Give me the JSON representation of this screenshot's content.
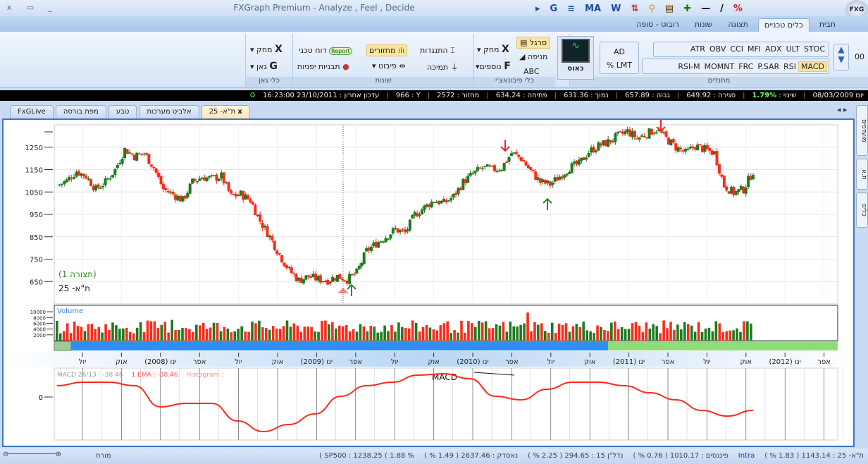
{
  "window": {
    "title": "FXGraph Premium - Analyze , Feel , Decide",
    "logo": "FXG",
    "close": "x",
    "restore": "▭",
    "minimize": "_"
  },
  "quick_access": [
    "G",
    "MA",
    "W",
    "%"
  ],
  "ribbon_tabs": [
    {
      "label": "תבית"
    },
    {
      "label": "כלים טכניים",
      "active": true
    },
    {
      "label": "תצוגה"
    },
    {
      "label": "שונות"
    },
    {
      "label": "רובוט - סופה"
    }
  ],
  "ribbon": {
    "indicators": {
      "label": "מתנדים",
      "row1": [
        "ATR",
        "OBV",
        "CCI",
        "MFI",
        "ADX",
        "ULT",
        "STOC"
      ],
      "row2": [
        "RSI-M",
        "MOMNT",
        "FRC",
        "P.SAR",
        "RSI",
        "MACD"
      ],
      "selected": "MACD",
      "ad": "AD",
      "lmt": "% LMT",
      "counter": "00"
    },
    "chaos": {
      "label": "כאוס"
    },
    "fibonacci": {
      "label": "כלי פיבונאצ'י",
      "ruler": "סרגל",
      "fan": "מניפה",
      "abc": "ABC",
      "delete": "מחק",
      "more": "נוספים"
    },
    "misc": {
      "label": "שונות",
      "resistance": "התנגדות",
      "support": "תמיכה",
      "cycles": "מחזורים",
      "pivot": "פיבוט",
      "report_badge": "Report",
      "tech_report": "דוח טכני",
      "japanese": "תבניות יפניות"
    },
    "gann": {
      "label": "כלי גאן",
      "delete": "מחק",
      "gann": "גאן"
    }
  },
  "info_bar": {
    "date": "08/03/2009 יום",
    "change_label": "שינוי :",
    "change": "1.79%",
    "close": "סגירה : 649.92",
    "high": "גבוה : 657.89",
    "low": "נמוך : 631.36",
    "open": "פתיחה : 634.24",
    "volume": "מחזור : 2572",
    "y": "966 : Y",
    "last_update": "עדכון אחרון : 23/10/2011 16:23:00"
  },
  "doc_tabs": [
    {
      "label": "ת\"א- 25",
      "active": true
    },
    {
      "label": "אלביט מערכות"
    },
    {
      "label": "טבע"
    },
    {
      "label": "מפת בורסה"
    },
    {
      "label": "FxGLive"
    }
  ],
  "side_tabs": [
    "מועדפים",
    "ת.א",
    "כלים"
  ],
  "chart_data": [
    {
      "type": "candlestick",
      "title": "ת\"א- 25",
      "subtitle": "(תצורה 1)",
      "ylim": [
        550,
        1350
      ],
      "yticks": [
        650,
        750,
        850,
        950,
        1050,
        1150,
        1250
      ],
      "closes": [
        1078,
        1100,
        1143,
        1120,
        1062,
        1094,
        1150,
        1240,
        1210,
        1224,
        1159,
        1062,
        1040,
        1013,
        1094,
        1117,
        1110,
        1120,
        1030,
        1040,
        1013,
        920,
        851,
        770,
        700,
        656,
        673,
        660,
        656,
        673,
        660,
        689,
        786,
        820,
        851,
        883,
        867,
        948,
        981,
        1013,
        1000,
        1030,
        1094,
        1130,
        1159,
        1150,
        1159,
        1224,
        1200,
        1143,
        1094,
        1084,
        1120,
        1159,
        1175,
        1230,
        1256,
        1273,
        1300,
        1321,
        1289,
        1310,
        1331,
        1289,
        1250,
        1224,
        1256,
        1240,
        1224,
        1078,
        1046,
        1062,
        1143
      ],
      "markers": [
        {
          "type": "buy-arrow",
          "at": "אפר (2009)"
        },
        {
          "type": "sell-arrow",
          "at": "אפר (2010)"
        },
        {
          "type": "buy-arrow",
          "at": "יול (2010)"
        },
        {
          "type": "sell-arrow",
          "at": "אפר (2011)"
        }
      ],
      "colors": {
        "up": "#1e7a1e",
        "down": "#ff2a1a"
      }
    },
    {
      "type": "bar",
      "title": "Volume",
      "yticks": [
        2000,
        4000,
        6000,
        8000,
        10000
      ],
      "ylim": [
        0,
        11000
      ]
    },
    {
      "type": "line",
      "title": "MACD",
      "legend": "MACD 26/13 : -38.46",
      "ema": "1 EMA : -38.46",
      "histogram": "Histogram :",
      "yticks": [
        0
      ],
      "values": [
        32,
        42,
        42,
        32,
        -28,
        -18,
        -18,
        -68,
        -98,
        -78,
        -48,
        2,
        32,
        42,
        62,
        66,
        52,
        2,
        -8,
        22,
        42,
        42,
        32,
        12,
        -8,
        -38,
        -54,
        -38
      ],
      "color": "#ff2a1a"
    }
  ],
  "x_axis": {
    "ticks": [
      "יול",
      "אוק",
      "ינו (2008)",
      "אפר",
      "יול",
      "אוק",
      "ינו (2009)",
      "אפר",
      "יול",
      "אוק",
      "ינו (2010)",
      "אפר",
      "יול",
      "אוק",
      "ינו (2011)",
      "אפר",
      "יול",
      "אוק",
      "ינו (2012)",
      "אפר"
    ]
  },
  "status_bar": {
    "zoom_label": "מורח",
    "items": [
      "ת\"א- 25 : 1143.14 ( 1.83 % )",
      "Intra",
      "פיננסים : 1010.17 ( 0.76 % )",
      "נדל\"ן 15 : 294.65 ( 2.25 % )",
      "נאסדק : 2637.46 ( 1.49 % )",
      "( SP500 : 1238.25 ( 1.88 %"
    ]
  }
}
